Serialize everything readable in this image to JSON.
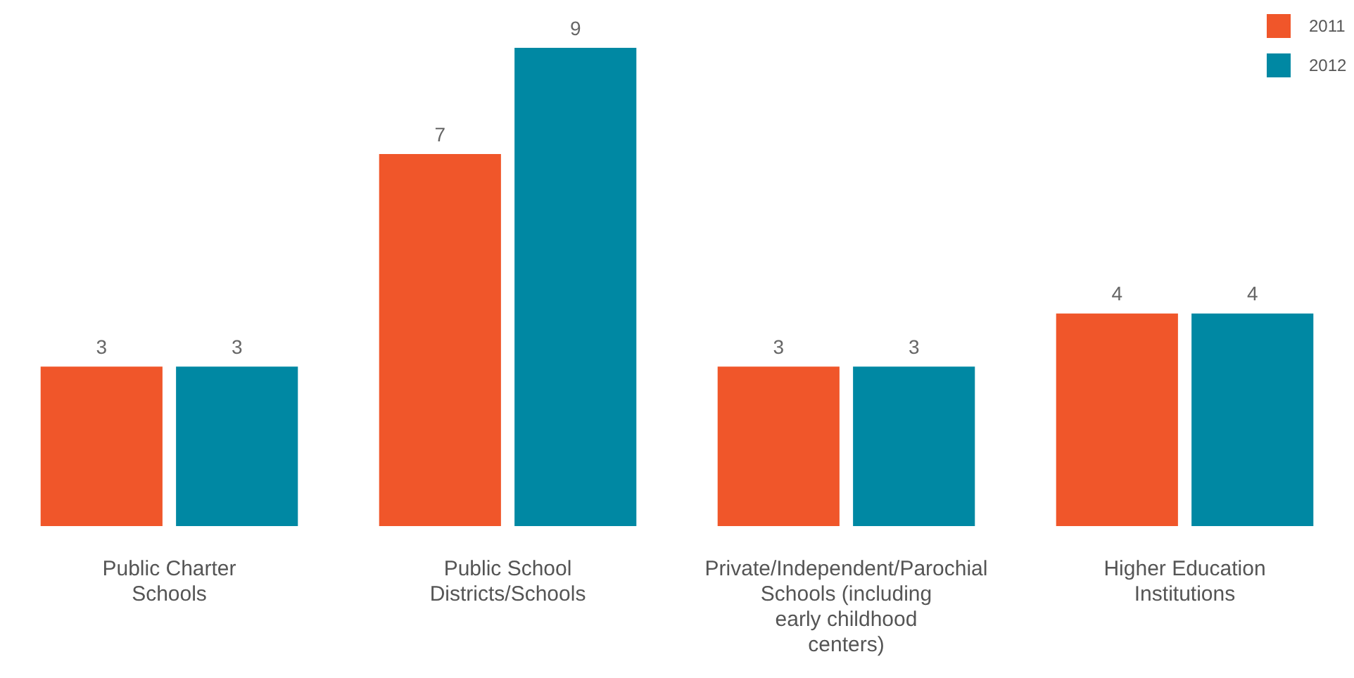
{
  "chart_data": {
    "type": "bar",
    "categories": [
      "Public Charter Schools",
      "Public School Districts/Schools",
      "Private/Independent/Parochial Schools (including early childhood centers)",
      "Higher Education Institutions"
    ],
    "series": [
      {
        "name": "2011",
        "color": "#f0562a",
        "values": [
          3,
          7,
          3,
          4
        ]
      },
      {
        "name": "2012",
        "color": "#0088a3",
        "values": [
          3,
          9,
          3,
          4
        ]
      }
    ],
    "ylim": [
      0,
      9
    ],
    "data_labels": true,
    "legend": "top right"
  }
}
